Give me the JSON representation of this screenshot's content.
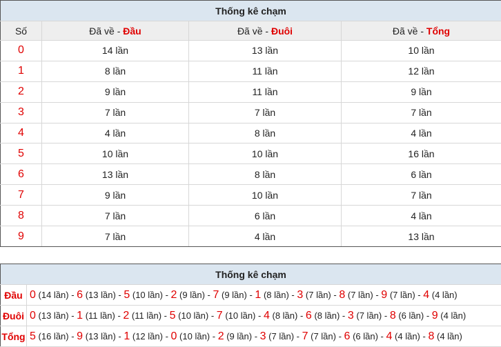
{
  "table1": {
    "title": "Thống kê chạm",
    "headers": {
      "so": "Số",
      "prefix": "Đã về - ",
      "dau": "Đầu",
      "duoi": "Đuôi",
      "tong": "Tổng"
    },
    "rows": [
      {
        "so": "0",
        "dau": "14 lần",
        "duoi": "13 lần",
        "tong": "10 lần"
      },
      {
        "so": "1",
        "dau": "8 lần",
        "duoi": "11 lần",
        "tong": "12 lần"
      },
      {
        "so": "2",
        "dau": "9 lần",
        "duoi": "11 lần",
        "tong": "9 lần"
      },
      {
        "so": "3",
        "dau": "7 lần",
        "duoi": "7 lần",
        "tong": "7 lần"
      },
      {
        "so": "4",
        "dau": "4 lần",
        "duoi": "8 lần",
        "tong": "4 lần"
      },
      {
        "so": "5",
        "dau": "10 lần",
        "duoi": "10 lần",
        "tong": "16 lần"
      },
      {
        "so": "6",
        "dau": "13 lần",
        "duoi": "8 lần",
        "tong": "6 lần"
      },
      {
        "so": "7",
        "dau": "9 lần",
        "duoi": "10 lần",
        "tong": "7 lần"
      },
      {
        "so": "8",
        "dau": "7 lần",
        "duoi": "6 lần",
        "tong": "4 lần"
      },
      {
        "so": "9",
        "dau": "7 lần",
        "duoi": "4 lần",
        "tong": "13 lần"
      }
    ]
  },
  "table2": {
    "title": "Thống kê chạm",
    "separator": " - ",
    "rows": [
      {
        "label": "Đầu",
        "items": [
          {
            "digit": "0",
            "count": "(14 lần)"
          },
          {
            "digit": "6",
            "count": "(13 lần)"
          },
          {
            "digit": "5",
            "count": "(10 lần)"
          },
          {
            "digit": "2",
            "count": "(9 lần)"
          },
          {
            "digit": "7",
            "count": "(9 lần)"
          },
          {
            "digit": "1",
            "count": "(8 lần)"
          },
          {
            "digit": "3",
            "count": "(7 lần)"
          },
          {
            "digit": "8",
            "count": "(7 lần)"
          },
          {
            "digit": "9",
            "count": "(7 lần)"
          },
          {
            "digit": "4",
            "count": "(4 lần)"
          }
        ]
      },
      {
        "label": "Đuôi",
        "items": [
          {
            "digit": "0",
            "count": "(13 lần)"
          },
          {
            "digit": "1",
            "count": "(11 lần)"
          },
          {
            "digit": "2",
            "count": "(11 lần)"
          },
          {
            "digit": "5",
            "count": "(10 lần)"
          },
          {
            "digit": "7",
            "count": "(10 lần)"
          },
          {
            "digit": "4",
            "count": "(8 lần)"
          },
          {
            "digit": "6",
            "count": "(8 lần)"
          },
          {
            "digit": "3",
            "count": "(7 lần)"
          },
          {
            "digit": "8",
            "count": "(6 lần)"
          },
          {
            "digit": "9",
            "count": "(4 lần)"
          }
        ]
      },
      {
        "label": "Tổng",
        "items": [
          {
            "digit": "5",
            "count": "(16 lần)"
          },
          {
            "digit": "9",
            "count": "(13 lần)"
          },
          {
            "digit": "1",
            "count": "(12 lần)"
          },
          {
            "digit": "0",
            "count": "(10 lần)"
          },
          {
            "digit": "2",
            "count": "(9 lần)"
          },
          {
            "digit": "3",
            "count": "(7 lần)"
          },
          {
            "digit": "7",
            "count": "(7 lần)"
          },
          {
            "digit": "6",
            "count": "(6 lần)"
          },
          {
            "digit": "4",
            "count": "(4 lần)"
          },
          {
            "digit": "8",
            "count": "(4 lần)"
          }
        ]
      }
    ]
  },
  "colors": {
    "highlight": "#e00000",
    "title_bg": "#dbe6f0",
    "header_bg": "#eeeeee"
  }
}
